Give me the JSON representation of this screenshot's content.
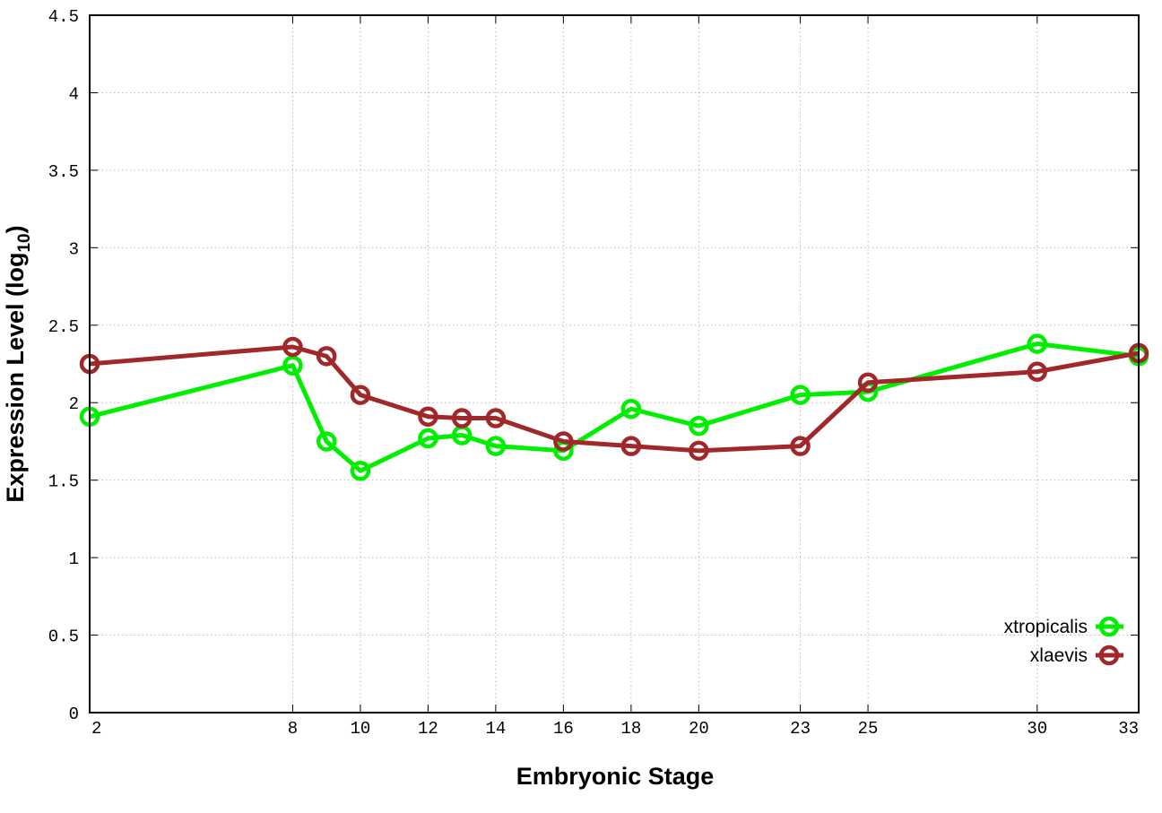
{
  "chart_data": {
    "type": "line",
    "title": "",
    "xlabel": "Embryonic Stage",
    "ylabel": "Expression Level (log",
    "ylabel_subscript": "10",
    "ylabel_suffix": ")",
    "x": [
      2,
      8,
      9,
      10,
      12,
      13,
      14,
      16,
      18,
      20,
      23,
      25,
      30,
      33
    ],
    "xticks": [
      2,
      8,
      10,
      12,
      14,
      16,
      18,
      20,
      23,
      25,
      30,
      33
    ],
    "xlim": [
      2,
      33
    ],
    "ylim": [
      0,
      4.5
    ],
    "yticks": [
      "0",
      "0.5",
      "1",
      "1.5",
      "2",
      "2.5",
      "3",
      "3.5",
      "4",
      "4.5"
    ],
    "grid": true,
    "legend_position": "bottom-right",
    "series": [
      {
        "name": "xtropicalis",
        "color": "#00ee00",
        "values": [
          1.91,
          2.24,
          1.75,
          1.56,
          1.77,
          1.79,
          1.72,
          1.69,
          1.96,
          1.85,
          2.05,
          2.07,
          2.38,
          2.3
        ]
      },
      {
        "name": "xlaevis",
        "color": "#a0282a",
        "values": [
          2.25,
          2.36,
          2.3,
          2.05,
          1.91,
          1.9,
          1.9,
          1.75,
          1.72,
          1.69,
          1.72,
          2.13,
          2.2,
          2.32
        ]
      }
    ]
  }
}
